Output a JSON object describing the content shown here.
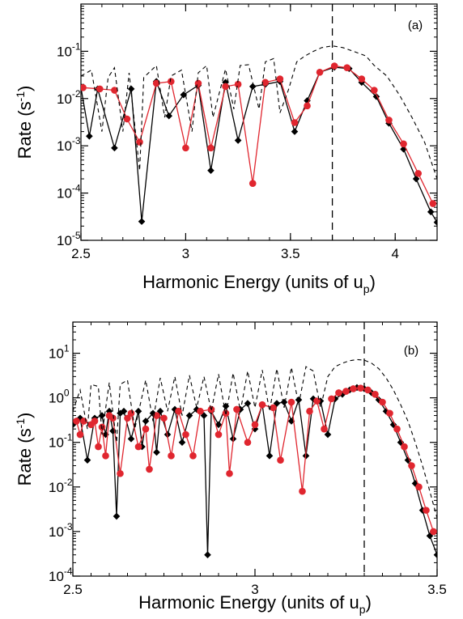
{
  "chart_data": [
    {
      "type": "line",
      "panel_label": "(a)",
      "xlabel": "Harmonic Energy (units of u",
      "xlabel_sub": "p",
      "xlabel_close": ")",
      "ylabel": "Rate (s",
      "ylabel_sup": "-1",
      "ylabel_close": ")",
      "xlim": [
        2.5,
        4.2
      ],
      "ylim_log10": [
        -5,
        0
      ],
      "yscale": "log",
      "x_ticks": [
        2.5,
        3,
        3.5,
        4
      ],
      "x_tick_labels": [
        "2.5",
        "3",
        "3.5",
        "4"
      ],
      "y_ticks_exp": [
        -5,
        -4,
        -3,
        -2,
        -1
      ],
      "y_tick_base": "10",
      "y_tick_exps": [
        "-5",
        "-4",
        "-3",
        "-2",
        "-1"
      ],
      "vline_x": 3.7,
      "series": [
        {
          "color": "#000000",
          "marker": "diamond",
          "style": "solid",
          "x": [
            2.5,
            2.54,
            2.58,
            2.66,
            2.74,
            2.79,
            2.86,
            2.92,
            2.99,
            3.06,
            3.12,
            3.19,
            3.25,
            3.32,
            3.38,
            3.45,
            3.52,
            3.58,
            3.64,
            3.71,
            3.78,
            3.84,
            3.91,
            3.97,
            4.04,
            4.1,
            4.17,
            4.2
          ],
          "y": [
            0.017,
            0.0016,
            0.016,
            0.0009,
            0.016,
            2.5e-05,
            0.023,
            0.0043,
            0.012,
            0.019,
            0.0003,
            0.022,
            0.0013,
            0.018,
            0.02,
            0.023,
            0.002,
            0.009,
            0.036,
            0.046,
            0.043,
            0.022,
            0.011,
            0.003,
            0.00085,
            0.0002,
            4e-05,
            2.4e-05
          ]
        },
        {
          "color": "#e0262f",
          "marker": "circle",
          "style": "solid",
          "x": [
            2.51,
            2.59,
            2.66,
            2.72,
            2.78,
            2.86,
            2.93,
            3.0,
            3.06,
            3.12,
            3.19,
            3.25,
            3.32,
            3.38,
            3.45,
            3.52,
            3.58,
            3.64,
            3.71,
            3.77,
            3.84,
            3.9,
            3.97,
            4.04,
            4.11,
            4.18
          ],
          "y": [
            0.017,
            0.016,
            0.015,
            0.0037,
            0.0012,
            0.021,
            0.023,
            0.0009,
            0.021,
            0.0009,
            0.018,
            0.02,
            0.00016,
            0.022,
            0.026,
            0.0031,
            0.007,
            0.036,
            0.049,
            0.045,
            0.026,
            0.015,
            0.0035,
            0.0011,
            0.00026,
            6e-05
          ]
        },
        {
          "color": "#000000",
          "marker": "none",
          "style": "dashed",
          "x": [
            2.5,
            2.55,
            2.6,
            2.63,
            2.66,
            2.7,
            2.73,
            2.78,
            2.8,
            2.86,
            2.9,
            2.93,
            2.98,
            3.03,
            3.06,
            3.1,
            3.13,
            3.19,
            3.23,
            3.26,
            3.3,
            3.35,
            3.38,
            3.42,
            3.45,
            3.49,
            3.53,
            3.57,
            3.61,
            3.65,
            3.7,
            3.75,
            3.8,
            3.86,
            3.9,
            3.96,
            4.02,
            4.08,
            4.14,
            4.2
          ],
          "y": [
            0.03,
            0.04,
            0.002,
            0.028,
            0.045,
            0.002,
            0.035,
            0.0003,
            0.028,
            0.05,
            0.004,
            0.03,
            0.04,
            0.002,
            0.035,
            0.05,
            0.004,
            0.042,
            0.006,
            0.05,
            0.052,
            0.006,
            0.06,
            0.07,
            0.005,
            0.015,
            0.06,
            0.08,
            0.1,
            0.12,
            0.13,
            0.12,
            0.1,
            0.08,
            0.05,
            0.03,
            0.012,
            0.004,
            0.0012,
            0.0002
          ]
        }
      ]
    },
    {
      "type": "line",
      "panel_label": "(b)",
      "xlabel": "Harmonic Energy (units of u",
      "xlabel_sub": "p",
      "xlabel_close": ")",
      "ylabel": "Rate (s",
      "ylabel_sup": "-1",
      "ylabel_close": ")",
      "xlim": [
        2.5,
        3.5
      ],
      "ylim_log10": [
        -4,
        1.7
      ],
      "yscale": "log",
      "x_ticks": [
        2.5,
        3,
        3.5
      ],
      "x_tick_labels": [
        "2.5",
        "3",
        "3.5"
      ],
      "y_ticks_exp": [
        -4,
        -3,
        -2,
        -1,
        0,
        1
      ],
      "y_tick_base": "10",
      "y_tick_exps": [
        "-4",
        "-3",
        "-2",
        "-1",
        "0",
        "1"
      ],
      "vline_x": 3.3,
      "series": [
        {
          "color": "#000000",
          "marker": "diamond",
          "style": "solid",
          "x": [
            2.5,
            2.51,
            2.52,
            2.54,
            2.56,
            2.58,
            2.59,
            2.6,
            2.61,
            2.62,
            2.63,
            2.64,
            2.66,
            2.68,
            2.69,
            2.7,
            2.72,
            2.73,
            2.74,
            2.76,
            2.78,
            2.8,
            2.82,
            2.84,
            2.86,
            2.87,
            2.88,
            2.9,
            2.92,
            2.94,
            2.96,
            2.98,
            3.0,
            3.02,
            3.04,
            3.06,
            3.08,
            3.1,
            3.12,
            3.14,
            3.16,
            3.18,
            3.2,
            3.22,
            3.24,
            3.26,
            3.28,
            3.3,
            3.32,
            3.34,
            3.36,
            3.38,
            3.4,
            3.42,
            3.44,
            3.46,
            3.48,
            3.5
          ],
          "y": [
            0.25,
            0.3,
            0.35,
            0.04,
            0.35,
            0.4,
            0.15,
            0.5,
            0.18,
            0.0022,
            0.45,
            0.5,
            0.12,
            0.5,
            0.08,
            0.3,
            0.45,
            0.06,
            0.5,
            0.15,
            0.55,
            0.1,
            0.4,
            0.55,
            0.4,
            0.0003,
            0.5,
            0.25,
            0.65,
            0.12,
            0.55,
            0.75,
            0.2,
            0.7,
            0.05,
            0.75,
            0.8,
            0.3,
            0.9,
            0.05,
            0.95,
            0.85,
            0.15,
            0.95,
            1.2,
            1.5,
            1.7,
            1.6,
            1.3,
            0.9,
            0.5,
            0.25,
            0.1,
            0.04,
            0.012,
            0.003,
            0.0008,
            0.0003
          ]
        },
        {
          "color": "#e0262f",
          "marker": "circle",
          "style": "solid",
          "x": [
            2.51,
            2.52,
            2.53,
            2.55,
            2.56,
            2.57,
            2.58,
            2.59,
            2.6,
            2.61,
            2.63,
            2.65,
            2.66,
            2.68,
            2.7,
            2.71,
            2.73,
            2.75,
            2.77,
            2.79,
            2.81,
            2.83,
            2.85,
            2.88,
            2.9,
            2.92,
            2.93,
            2.95,
            2.98,
            3.0,
            3.02,
            3.05,
            3.07,
            3.1,
            3.13,
            3.15,
            3.17,
            3.19,
            3.21,
            3.23,
            3.25,
            3.27,
            3.29,
            3.31,
            3.33,
            3.35,
            3.37,
            3.39,
            3.41,
            3.43,
            3.45,
            3.47,
            3.49
          ],
          "y": [
            0.3,
            0.15,
            0.3,
            0.25,
            0.3,
            0.08,
            0.22,
            0.05,
            0.4,
            0.35,
            0.02,
            0.35,
            0.45,
            0.08,
            0.2,
            0.025,
            0.4,
            0.35,
            0.05,
            0.5,
            0.15,
            0.05,
            0.5,
            0.55,
            0.15,
            0.45,
            0.02,
            0.55,
            0.1,
            0.25,
            0.7,
            0.6,
            0.04,
            0.8,
            0.008,
            0.5,
            0.85,
            0.2,
            0.95,
            1.3,
            1.4,
            1.6,
            1.65,
            1.5,
            1.2,
            0.8,
            0.45,
            0.2,
            0.08,
            0.03,
            0.01,
            0.003,
            0.001
          ]
        },
        {
          "color": "#000000",
          "marker": "none",
          "style": "dashed",
          "x": [
            2.5,
            2.52,
            2.54,
            2.55,
            2.57,
            2.58,
            2.6,
            2.62,
            2.63,
            2.65,
            2.67,
            2.7,
            2.72,
            2.74,
            2.76,
            2.78,
            2.8,
            2.82,
            2.84,
            2.86,
            2.88,
            2.9,
            2.92,
            2.94,
            2.96,
            2.98,
            3.0,
            3.02,
            3.04,
            3.06,
            3.08,
            3.1,
            3.12,
            3.14,
            3.16,
            3.18,
            3.2,
            3.22,
            3.24,
            3.26,
            3.28,
            3.3,
            3.32,
            3.34,
            3.36,
            3.38,
            3.4,
            3.42,
            3.44,
            3.46,
            3.48,
            3.5
          ],
          "y": [
            0.5,
            1.5,
            0.2,
            2.0,
            1.8,
            0.15,
            2.2,
            0.1,
            2.0,
            2.5,
            0.2,
            2.5,
            0.3,
            2.8,
            0.5,
            3.0,
            0.4,
            3.2,
            0.6,
            3.0,
            0.5,
            3.4,
            0.4,
            3.6,
            0.5,
            4.0,
            0.6,
            4.2,
            0.5,
            4.5,
            0.6,
            4.8,
            0.7,
            5.0,
            4.0,
            0.6,
            3.0,
            5.0,
            6.0,
            6.8,
            7.2,
            7.0,
            6.0,
            4.5,
            2.8,
            1.5,
            0.7,
            0.3,
            0.1,
            0.03,
            0.008,
            0.002
          ]
        }
      ]
    }
  ]
}
